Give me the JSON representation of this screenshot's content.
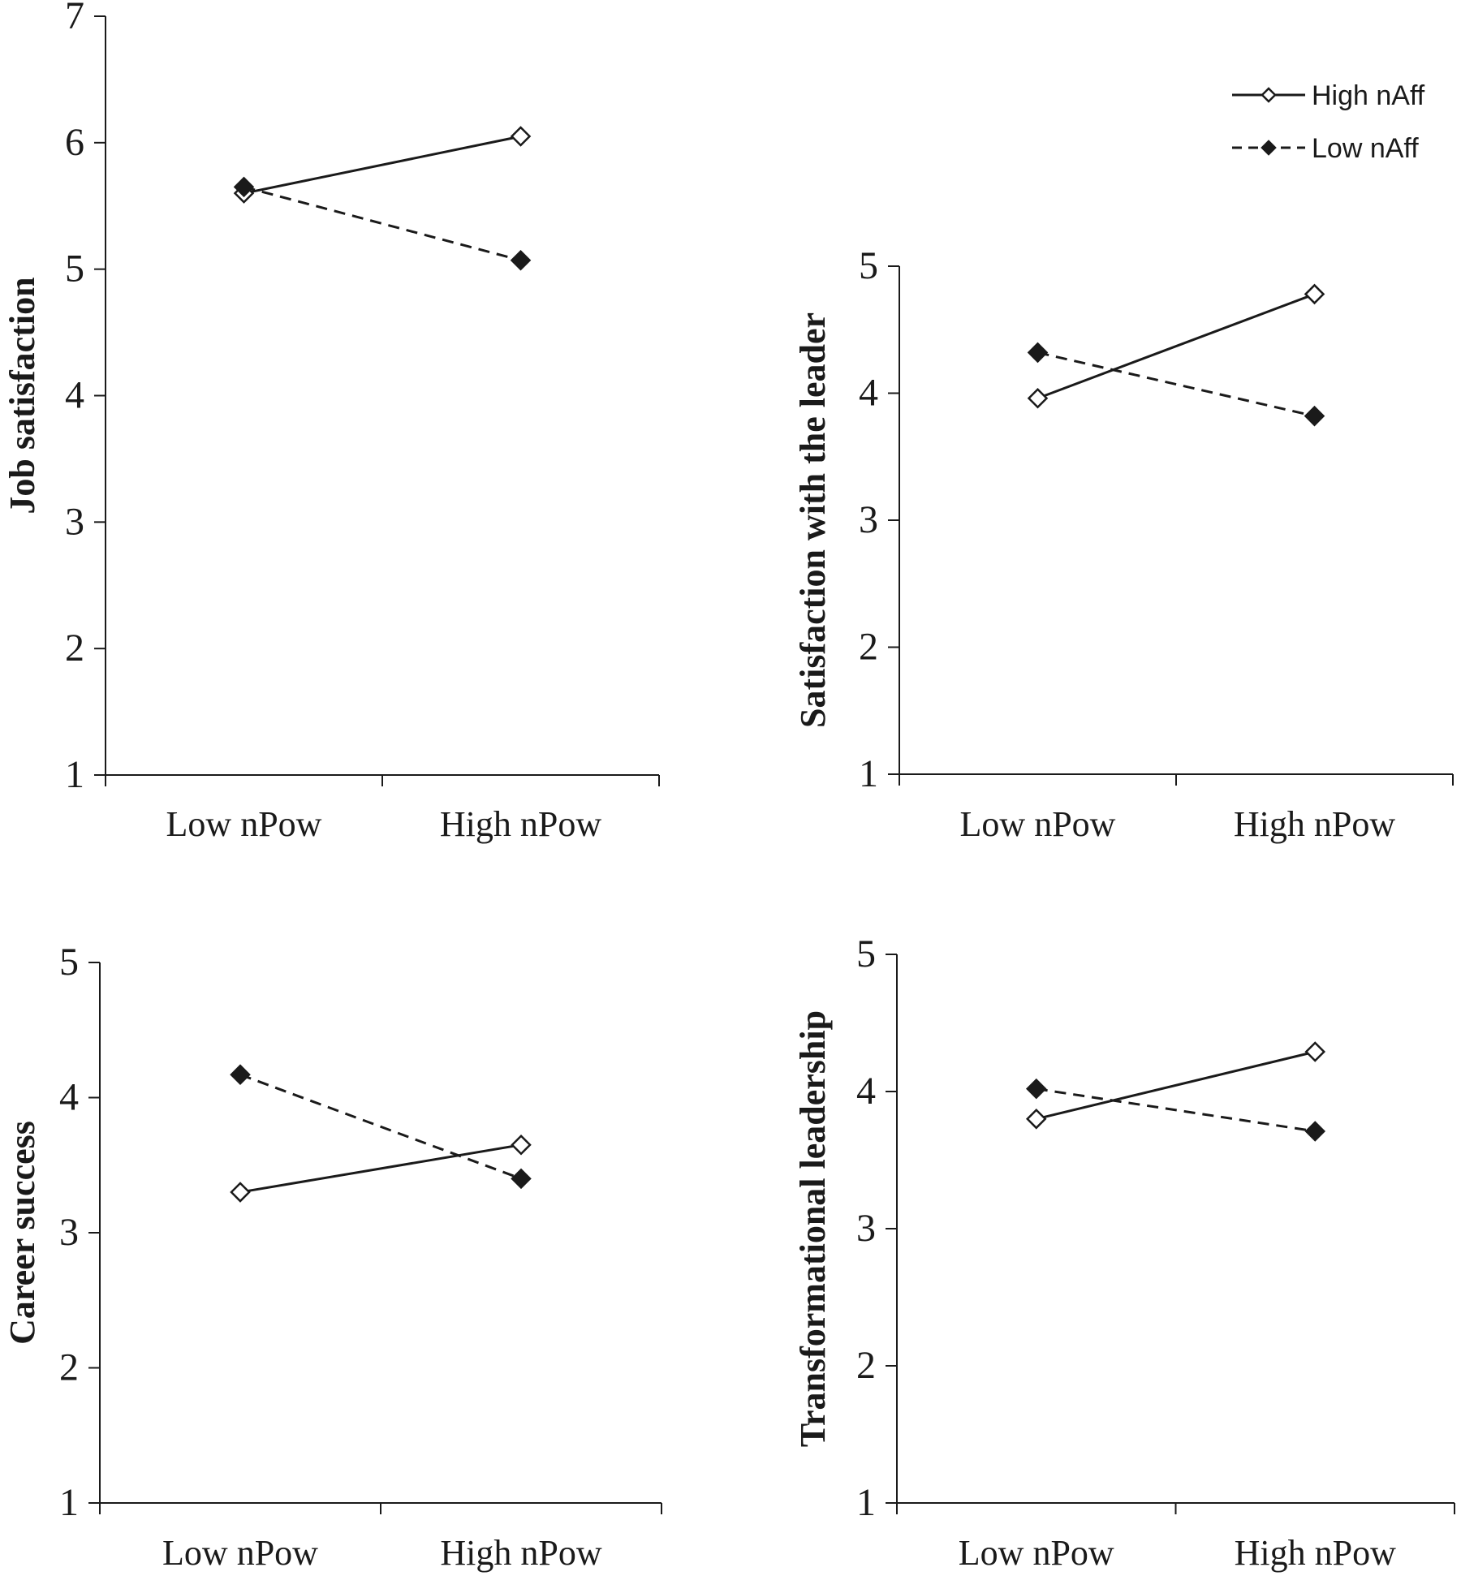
{
  "legend": {
    "items": [
      {
        "label": "High nAff",
        "style": "solid",
        "marker": "open-diamond"
      },
      {
        "label": "Low nAff",
        "style": "dashed",
        "marker": "filled-diamond"
      }
    ]
  },
  "chart_data": [
    {
      "type": "line",
      "title": "",
      "xlabel": "",
      "ylabel": "Job satisfaction",
      "categories": [
        "Low nPow",
        "High nPow"
      ],
      "ylim": [
        1,
        7
      ],
      "yticks": [
        "1",
        "2",
        "3",
        "4",
        "5",
        "6",
        "7"
      ],
      "series": [
        {
          "name": "High nAff",
          "values": [
            5.6,
            6.05
          ]
        },
        {
          "name": "Low nAff",
          "values": [
            5.65,
            5.07
          ]
        }
      ]
    },
    {
      "type": "line",
      "title": "",
      "xlabel": "",
      "ylabel": "Satisfaction with the leader",
      "categories": [
        "Low nPow",
        "High nPow"
      ],
      "ylim": [
        1,
        5
      ],
      "yticks": [
        "1",
        "2",
        "3",
        "4",
        "5"
      ],
      "series": [
        {
          "name": "High nAff",
          "values": [
            3.96,
            4.78
          ]
        },
        {
          "name": "Low nAff",
          "values": [
            4.32,
            3.82
          ]
        }
      ]
    },
    {
      "type": "line",
      "title": "",
      "xlabel": "",
      "ylabel": "Career success",
      "categories": [
        "Low nPow",
        "High nPow"
      ],
      "ylim": [
        1,
        5
      ],
      "yticks": [
        "1",
        "2",
        "3",
        "4",
        "5"
      ],
      "series": [
        {
          "name": "High nAff",
          "values": [
            3.3,
            3.65
          ]
        },
        {
          "name": "Low nAff",
          "values": [
            4.17,
            3.4
          ]
        }
      ]
    },
    {
      "type": "line",
      "title": "",
      "xlabel": "",
      "ylabel": "Transformational leadership",
      "categories": [
        "Low nPow",
        "High nPow"
      ],
      "ylim": [
        1,
        5
      ],
      "yticks": [
        "1",
        "2",
        "3",
        "4",
        "5"
      ],
      "series": [
        {
          "name": "High nAff",
          "values": [
            3.8,
            4.29
          ]
        },
        {
          "name": "Low nAff",
          "values": [
            4.02,
            3.71
          ]
        }
      ]
    }
  ]
}
